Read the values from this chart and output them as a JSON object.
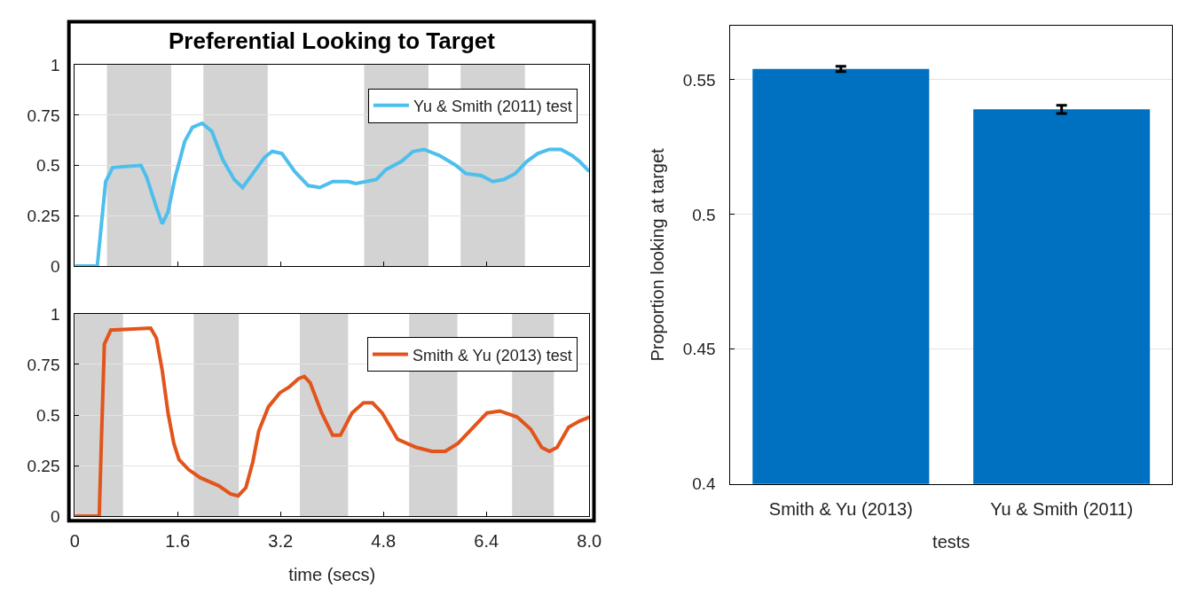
{
  "chart_data": [
    {
      "type": "line",
      "title": "Preferential Looking to Target",
      "tick_labels": "y",
      "grid": "y",
      "legend": "top right",
      "line_style": "solid",
      "xlim": [
        0,
        8
      ],
      "xticks": [
        {
          "value": 0,
          "label": null
        },
        {
          "value": 1.6,
          "label": null
        },
        {
          "value": 3.2,
          "label": null
        },
        {
          "value": 4.8,
          "label": null
        },
        {
          "value": 6.4,
          "label": null
        },
        {
          "value": 8.0,
          "label": null
        }
      ],
      "ylim": [
        0,
        1
      ],
      "yticks": [
        0,
        0.25,
        0.5,
        0.75,
        1
      ],
      "bands": [
        {
          "axis": "x",
          "from": 0.5,
          "to": 1.5,
          "color": "#d3d3d3"
        },
        {
          "axis": "x",
          "from": 2,
          "to": 3,
          "color": "#d3d3d3"
        },
        {
          "axis": "x",
          "from": 4.5,
          "to": 5.5,
          "color": "#d3d3d3"
        },
        {
          "axis": "x",
          "from": 6,
          "to": 7,
          "color": "#d3d3d3"
        }
      ],
      "x": [
        0,
        0.35,
        0.48,
        0.59,
        1.03,
        1.12,
        1.27,
        1.36,
        1.45,
        1.56,
        1.71,
        1.83,
        1.98,
        2.13,
        2.3,
        2.48,
        2.61,
        2.77,
        2.95,
        3.07,
        3.22,
        3.42,
        3.63,
        3.81,
        4.01,
        4.25,
        4.37,
        4.69,
        4.84,
        5.08,
        5.26,
        5.43,
        5.67,
        5.93,
        6.08,
        6.32,
        6.5,
        6.67,
        6.85,
        7.03,
        7.2,
        7.38,
        7.56,
        7.73,
        7.85,
        8.0
      ],
      "series": [
        {
          "name": "Yu & Smith (2011) test",
          "color": "#4dbfec",
          "values": [
            0,
            0,
            0.42,
            0.49,
            0.5,
            0.44,
            0.29,
            0.21,
            0.27,
            0.44,
            0.62,
            0.69,
            0.71,
            0.67,
            0.53,
            0.43,
            0.39,
            0.46,
            0.54,
            0.57,
            0.56,
            0.47,
            0.4,
            0.39,
            0.42,
            0.42,
            0.41,
            0.43,
            0.48,
            0.52,
            0.57,
            0.58,
            0.55,
            0.5,
            0.46,
            0.45,
            0.42,
            0.43,
            0.46,
            0.52,
            0.56,
            0.58,
            0.58,
            0.55,
            0.52,
            0.47
          ]
        }
      ]
    },
    {
      "type": "line",
      "xlabel": "time (secs)",
      "grid": "y",
      "legend": "top right",
      "line_style": "solid",
      "xlim": [
        0,
        8
      ],
      "xticks": [
        0,
        1.6,
        3.2,
        4.8,
        6.4,
        {
          "value": 8,
          "label": "8.0"
        }
      ],
      "ylim": [
        0,
        1
      ],
      "yticks": [
        0,
        0.25,
        0.5,
        0.75,
        1
      ],
      "bands": [
        {
          "axis": "x",
          "from": 0,
          "to": 0.75,
          "color": "#d3d3d3"
        },
        {
          "axis": "x",
          "from": 1.85,
          "to": 2.55,
          "color": "#d3d3d3"
        },
        {
          "axis": "x",
          "from": 3.5,
          "to": 4.25,
          "color": "#d3d3d3"
        },
        {
          "axis": "x",
          "from": 5.2,
          "to": 5.95,
          "color": "#d3d3d3"
        },
        {
          "axis": "x",
          "from": 6.8,
          "to": 7.45,
          "color": "#d3d3d3"
        }
      ],
      "x": [
        0,
        0.38,
        0.41,
        0.46,
        0.56,
        1.18,
        1.27,
        1.36,
        1.45,
        1.54,
        1.62,
        1.77,
        1.95,
        2.24,
        2.42,
        2.54,
        2.66,
        2.77,
        2.86,
        3.01,
        3.19,
        3.34,
        3.48,
        3.57,
        3.66,
        3.84,
        4.01,
        4.13,
        4.31,
        4.49,
        4.63,
        4.78,
        5.02,
        5.31,
        5.55,
        5.76,
        5.96,
        6.2,
        6.41,
        6.61,
        6.88,
        7.09,
        7.26,
        7.38,
        7.5,
        7.68,
        7.85,
        8.0
      ],
      "series": [
        {
          "name": "Smith & Yu (2013) test",
          "color": "#e2541b",
          "values": [
            0,
            0,
            0.33,
            0.85,
            0.92,
            0.93,
            0.88,
            0.72,
            0.51,
            0.36,
            0.28,
            0.23,
            0.19,
            0.15,
            0.11,
            0.1,
            0.14,
            0.27,
            0.42,
            0.54,
            0.61,
            0.64,
            0.68,
            0.69,
            0.66,
            0.51,
            0.4,
            0.4,
            0.51,
            0.56,
            0.56,
            0.51,
            0.38,
            0.34,
            0.32,
            0.32,
            0.36,
            0.44,
            0.51,
            0.52,
            0.49,
            0.43,
            0.34,
            0.32,
            0.34,
            0.44,
            0.47,
            0.49
          ]
        }
      ]
    },
    {
      "type": "bar",
      "xlabel": "tests",
      "ylabel": "Proportion looking at target",
      "grid": "y",
      "color": "#0070c0",
      "categories": [
        "Smith & Yu (2013)",
        "Yu & Smith (2011)"
      ],
      "values": [
        0.554,
        0.539
      ],
      "errors": [
        0.001,
        0.0015
      ],
      "ylim": [
        0.4,
        0.57
      ],
      "yticks": [
        0.4,
        0.45,
        0.5,
        0.55
      ]
    }
  ]
}
